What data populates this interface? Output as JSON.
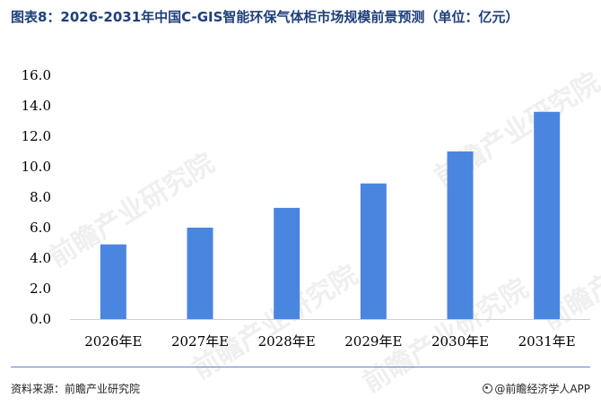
{
  "header": {
    "title": "图表8：2026-2031年中国C-GIS智能环保气体柜市场规模前景预测（单位：亿元）"
  },
  "footer": {
    "source": "资料来源：前瞻产业研究院",
    "brand": "@前瞻经济学人APP"
  },
  "watermark": {
    "text": "前瞻产业研究院"
  },
  "colors": {
    "bar": "#4a86e0",
    "axis": "#d0d0d0",
    "title": "#1f3f7a"
  },
  "chart_data": {
    "type": "bar",
    "title": "图表8：2026-2031年中国C-GIS智能环保气体柜市场规模前景预测（单位：亿元）",
    "xlabel": "",
    "ylabel": "",
    "categories": [
      "2026年E",
      "2027年E",
      "2028年E",
      "2029年E",
      "2030年E",
      "2031年E"
    ],
    "values": [
      4.9,
      6.0,
      7.3,
      8.9,
      11.0,
      13.6
    ],
    "ylim": [
      0,
      16
    ],
    "yticks": [
      "0.0",
      "2.0",
      "4.0",
      "6.0",
      "8.0",
      "10.0",
      "12.0",
      "14.0",
      "16.0"
    ],
    "grid": false,
    "legend": "none"
  }
}
